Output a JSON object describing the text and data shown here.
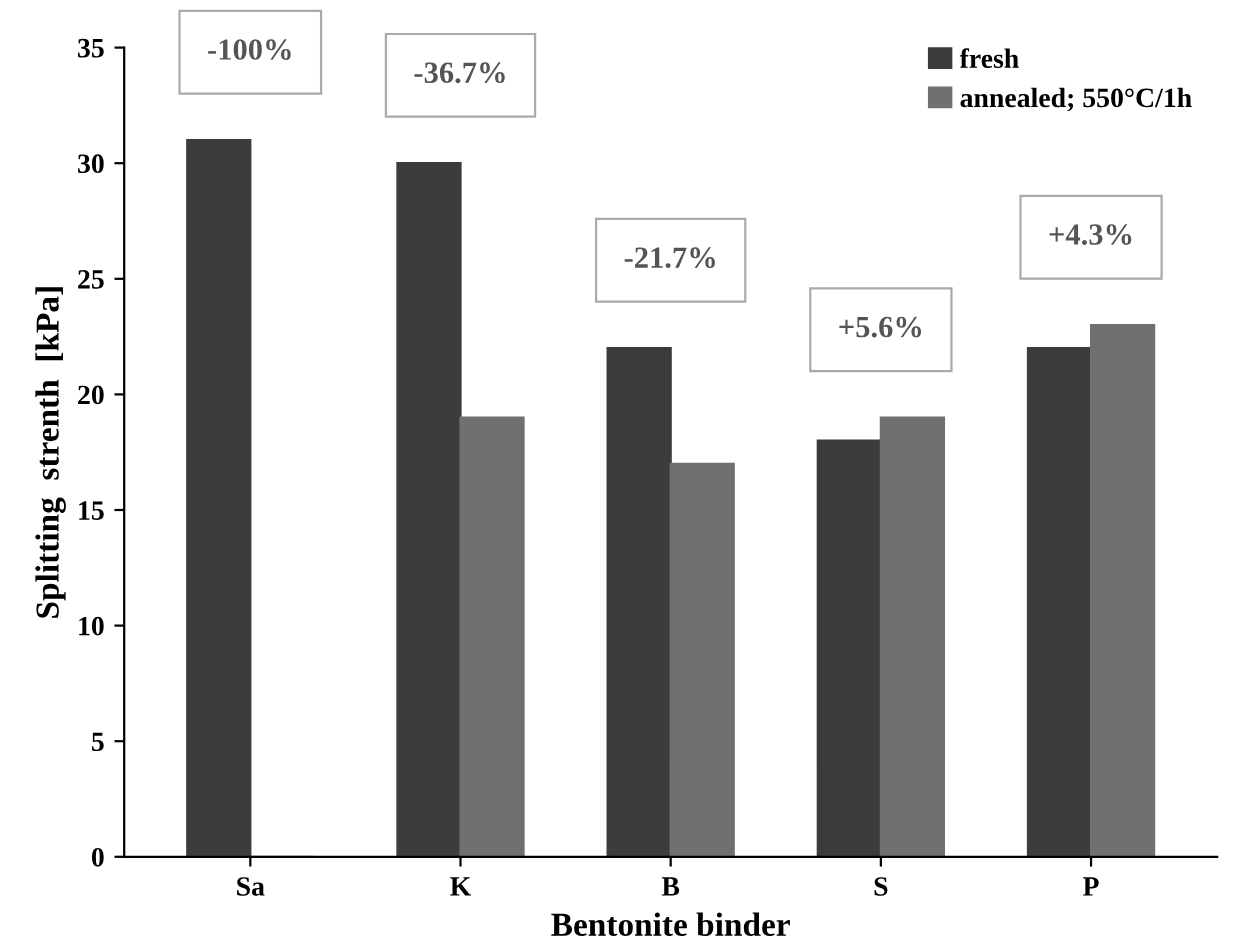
{
  "chart_data": {
    "type": "bar",
    "xlabel": "Bentonite binder",
    "ylabel": "Splitting  strenth  [kPa]",
    "categories": [
      "Sa",
      "K",
      "B",
      "S",
      "P"
    ],
    "series": [
      {
        "name": "fresh",
        "color": "#3c3c3c",
        "values": [
          31,
          30,
          22,
          18,
          22
        ]
      },
      {
        "name": "annealed; 550°C/1h",
        "color": "#707070",
        "values": [
          0,
          19,
          17,
          19,
          23
        ]
      }
    ],
    "annotations": [
      "-100%",
      "-36.7%",
      "-21.7%",
      "+5.6%",
      "+4.3%"
    ],
    "ylim": [
      0,
      35
    ],
    "yticks": [
      0,
      5,
      10,
      15,
      20,
      25,
      30,
      35
    ],
    "grid": false,
    "legend": "top right"
  }
}
